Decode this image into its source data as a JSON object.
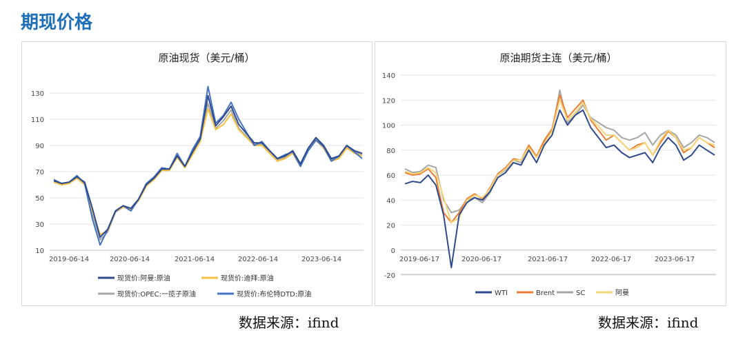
{
  "page": {
    "title": "期现价格"
  },
  "sources": [
    "数据来源：ifind",
    "数据来源：ifind"
  ],
  "chart_data": [
    {
      "type": "line",
      "title": "原油现货（美元/桶）",
      "xlabel": "",
      "ylabel": "",
      "xticks": [
        "2019-06-14",
        "2020-06-14",
        "2021-06-14",
        "2022-06-14",
        "2023-06-14"
      ],
      "x": [
        "2019-06",
        "2019-08",
        "2019-10",
        "2019-12",
        "2020-02",
        "2020-03",
        "2020-04",
        "2020-05",
        "2020-06",
        "2020-08",
        "2020-10",
        "2020-12",
        "2021-02",
        "2021-04",
        "2021-06",
        "2021-08",
        "2021-10",
        "2021-12",
        "2022-01",
        "2022-02",
        "2022-03",
        "2022-04",
        "2022-05",
        "2022-06",
        "2022-07",
        "2022-08",
        "2022-09",
        "2022-10",
        "2022-11",
        "2022-12",
        "2023-02",
        "2023-04",
        "2023-06",
        "2023-08",
        "2023-09",
        "2023-10",
        "2023-12",
        "2024-02",
        "2024-04",
        "2024-06",
        "2024-08"
      ],
      "ylim": [
        10,
        140
      ],
      "yticks": [
        10,
        30,
        50,
        70,
        90,
        110,
        130
      ],
      "series": [
        {
          "name": "现货价:阿曼:原油",
          "color": "#2e4a8c",
          "values": [
            63,
            61,
            62,
            66,
            62,
            42,
            20,
            26,
            40,
            44,
            42,
            49,
            60,
            65,
            72,
            72,
            82,
            74,
            85,
            95,
            128,
            105,
            112,
            120,
            106,
            99,
            92,
            92,
            86,
            80,
            82,
            86,
            76,
            88,
            96,
            90,
            80,
            82,
            90,
            86,
            84
          ]
        },
        {
          "name": "现货价:迪拜:原油",
          "color": "#f5c242",
          "values": [
            62,
            60,
            61,
            65,
            60,
            40,
            22,
            25,
            40,
            43,
            41,
            48,
            59,
            64,
            71,
            71,
            81,
            73,
            83,
            93,
            118,
            102,
            106,
            114,
            102,
            96,
            90,
            90,
            84,
            78,
            80,
            84,
            74,
            86,
            94,
            88,
            78,
            80,
            88,
            84,
            82
          ]
        },
        {
          "name": "现货价:OPEC:一揽子原油",
          "color": "#a6a6a6",
          "values": [
            62,
            60,
            61,
            65,
            60,
            38,
            18,
            24,
            39,
            43,
            41,
            48,
            59,
            64,
            71,
            71,
            81,
            73,
            84,
            94,
            122,
            103,
            109,
            117,
            103,
            97,
            91,
            91,
            85,
            79,
            81,
            85,
            75,
            87,
            95,
            89,
            79,
            81,
            89,
            85,
            83
          ]
        },
        {
          "name": "现货价:布伦特DTD:原油",
          "color": "#4472c4",
          "values": [
            64,
            61,
            62,
            67,
            61,
            34,
            14,
            26,
            40,
            44,
            40,
            49,
            61,
            66,
            73,
            72,
            84,
            74,
            87,
            97,
            135,
            107,
            113,
            123,
            110,
            100,
            90,
            93,
            86,
            80,
            83,
            85,
            74,
            86,
            94,
            89,
            78,
            82,
            90,
            85,
            80
          ]
        }
      ]
    },
    {
      "type": "line",
      "title": "原油期货主连（美元/桶）",
      "xlabel": "",
      "ylabel": "",
      "xticks": [
        "2019-06-17",
        "2020-06-17",
        "2021-06-17",
        "2022-06-17",
        "2023-06-17"
      ],
      "x": [
        "2019-06",
        "2019-08",
        "2019-10",
        "2019-12",
        "2020-02",
        "2020-03",
        "2020-04",
        "2020-05",
        "2020-06",
        "2020-08",
        "2020-10",
        "2020-12",
        "2021-02",
        "2021-04",
        "2021-06",
        "2021-08",
        "2021-10",
        "2021-12",
        "2022-01",
        "2022-02",
        "2022-03",
        "2022-04",
        "2022-05",
        "2022-06",
        "2022-07",
        "2022-08",
        "2022-09",
        "2022-10",
        "2022-11",
        "2022-12",
        "2023-02",
        "2023-04",
        "2023-06",
        "2023-08",
        "2023-09",
        "2023-10",
        "2023-12",
        "2024-02",
        "2024-04",
        "2024-06",
        "2024-08"
      ],
      "ylim": [
        -20,
        140
      ],
      "yticks": [
        -20,
        0,
        20,
        40,
        60,
        80,
        100,
        120,
        140
      ],
      "series": [
        {
          "name": "WTI",
          "color": "#2e4a8c",
          "values": [
            53,
            55,
            54,
            60,
            52,
            28,
            -14,
            28,
            38,
            42,
            40,
            47,
            58,
            62,
            70,
            68,
            80,
            70,
            84,
            92,
            112,
            100,
            108,
            112,
            98,
            90,
            82,
            84,
            78,
            74,
            76,
            78,
            70,
            82,
            90,
            84,
            72,
            76,
            84,
            80,
            76
          ]
        },
        {
          "name": "Brent",
          "color": "#ed7d31",
          "values": [
            62,
            60,
            61,
            65,
            58,
            30,
            22,
            30,
            41,
            45,
            41,
            50,
            61,
            66,
            73,
            72,
            84,
            75,
            88,
            97,
            124,
            106,
            113,
            120,
            104,
            96,
            88,
            92,
            86,
            80,
            84,
            86,
            76,
            86,
            95,
            90,
            78,
            82,
            90,
            86,
            82
          ]
        },
        {
          "name": "SC",
          "color": "#a6a6a6",
          "values": [
            65,
            62,
            63,
            68,
            66,
            40,
            30,
            32,
            40,
            42,
            38,
            46,
            60,
            64,
            72,
            70,
            82,
            74,
            86,
            95,
            128,
            102,
            108,
            116,
            106,
            102,
            98,
            96,
            90,
            88,
            90,
            94,
            84,
            92,
            96,
            92,
            82,
            86,
            92,
            90,
            86
          ]
        },
        {
          "name": "阿曼",
          "color": "#f5d67a",
          "values": [
            63,
            61,
            62,
            66,
            62,
            42,
            22,
            26,
            40,
            44,
            42,
            49,
            60,
            65,
            72,
            72,
            82,
            74,
            85,
            95,
            120,
            104,
            110,
            118,
            105,
            99,
            92,
            92,
            86,
            80,
            82,
            86,
            76,
            88,
            96,
            90,
            80,
            82,
            90,
            86,
            84
          ]
        }
      ]
    }
  ]
}
